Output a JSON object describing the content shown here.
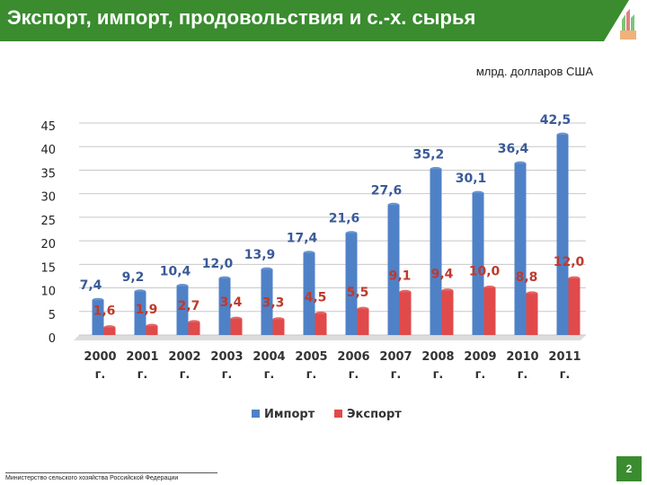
{
  "header": {
    "title": "Экспорт, импорт, продовольствия и с.-х. сырья"
  },
  "unit_label": "млрд. долларов США",
  "footer": {
    "ministry": "Министерство сельского хозяйства Российской Федерации",
    "page_number": "2"
  },
  "colors": {
    "title_bar": "#3a8c2f",
    "import": "#4f81c7",
    "export": "#e04a4a",
    "import_label": "#3a5a98",
    "export_label": "#c0392b"
  },
  "chart_data": {
    "type": "bar",
    "title": "",
    "xlabel": "",
    "ylabel": "",
    "ylim": [
      0,
      45
    ],
    "yticks": [
      0,
      5,
      10,
      15,
      20,
      25,
      30,
      35,
      40,
      45
    ],
    "grid": true,
    "legend_position": "bottom",
    "categories": [
      "2000 г.",
      "2001 г.",
      "2002 г.",
      "2003 г.",
      "2004 г.",
      "2005 г.",
      "2006 г.",
      "2007 г.",
      "2008 г.",
      "2009 г.",
      "2010 г.",
      "2011 г."
    ],
    "series": [
      {
        "name": "Импорт",
        "values": [
          7.4,
          9.2,
          10.4,
          12.0,
          13.9,
          17.4,
          21.6,
          27.6,
          35.2,
          30.1,
          36.4,
          42.5
        ],
        "labels": [
          "7,4",
          "9,2",
          "10,4",
          "12,0",
          "13,9",
          "17,4",
          "21,6",
          "27,6",
          "35,2",
          "30,1",
          "36,4",
          "42,5"
        ]
      },
      {
        "name": "Экспорт",
        "values": [
          1.6,
          1.9,
          2.7,
          3.4,
          3.3,
          4.5,
          5.5,
          9.1,
          9.4,
          10.0,
          8.8,
          12.0
        ],
        "labels": [
          "1,6",
          "1,9",
          "2,7",
          "3,4",
          "3,3",
          "4,5",
          "5,5",
          "9,1",
          "9,4",
          "10,0",
          "8,8",
          "12,0"
        ]
      }
    ]
  }
}
